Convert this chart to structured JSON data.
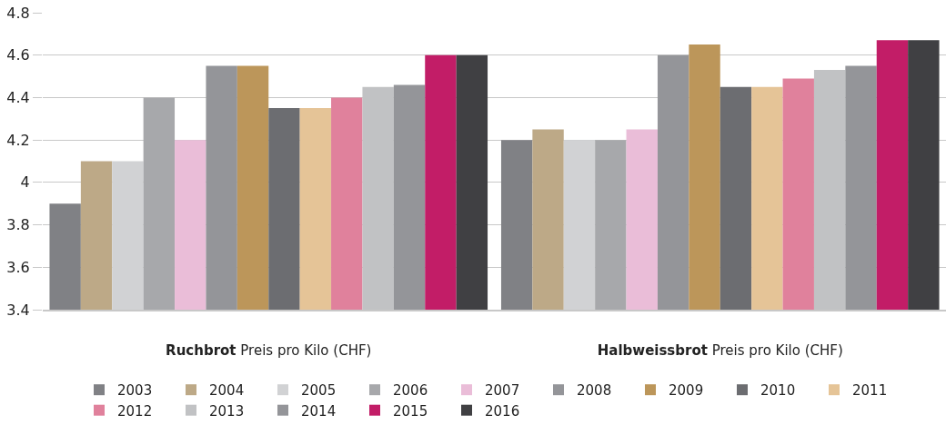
{
  "chart_data": {
    "type": "bar",
    "categories": [
      "Ruchbrot Preis pro Kilo (CHF)",
      "Halbweissbrot Preis pro Kilo (CHF)"
    ],
    "series": [
      {
        "name": "2003",
        "color": "#808185",
        "values": [
          3.9,
          4.2
        ]
      },
      {
        "name": "2004",
        "color": "#bda987",
        "values": [
          4.1,
          4.25
        ]
      },
      {
        "name": "2005",
        "color": "#d1d2d4",
        "values": [
          4.1,
          4.2
        ]
      },
      {
        "name": "2006",
        "color": "#a7a8ab",
        "values": [
          4.4,
          4.2
        ]
      },
      {
        "name": "2007",
        "color": "#eabdd8",
        "values": [
          4.2,
          4.25
        ]
      },
      {
        "name": "2008",
        "color": "#949599",
        "values": [
          4.55,
          4.6
        ]
      },
      {
        "name": "2009",
        "color": "#bc965a",
        "values": [
          4.55,
          4.65
        ]
      },
      {
        "name": "2010",
        "color": "#6c6d71",
        "values": [
          4.35,
          4.45
        ]
      },
      {
        "name": "2011",
        "color": "#e5c497",
        "values": [
          4.35,
          4.45
        ]
      },
      {
        "name": "2012",
        "color": "#e0819c",
        "values": [
          4.4,
          4.49
        ]
      },
      {
        "name": "2013",
        "color": "#c1c2c4",
        "values": [
          4.45,
          4.53
        ]
      },
      {
        "name": "2014",
        "color": "#949599",
        "values": [
          4.46,
          4.55
        ]
      },
      {
        "name": "2015",
        "color": "#c21d67",
        "values": [
          4.6,
          4.67
        ]
      },
      {
        "name": "2016",
        "color": "#404043",
        "values": [
          4.6,
          4.67
        ]
      }
    ],
    "ylim": [
      3.4,
      4.8
    ],
    "yticks": [
      3.4,
      3.6,
      3.8,
      4,
      4.2,
      4.4,
      4.6,
      4.8
    ],
    "grid": "y",
    "legend": "bottom"
  }
}
